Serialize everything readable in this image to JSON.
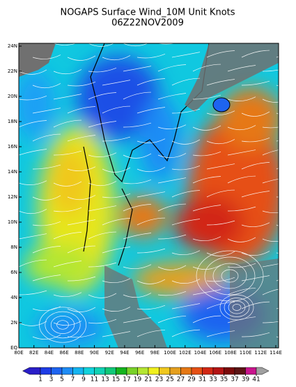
{
  "title": "NOGAPS Surface Wind_10M Unit Knots",
  "subtitle": "06Z22NOV2009",
  "lat_labels": [
    "EQ",
    "2N",
    "4N",
    "6N",
    "8N",
    "10N",
    "12N",
    "14N",
    "16N",
    "18N",
    "20N",
    "22N",
    "24N"
  ],
  "lon_labels": [
    "80E",
    "82E",
    "84E",
    "86E",
    "88E",
    "90E",
    "92E",
    "94E",
    "96E",
    "98E",
    "100E",
    "102E",
    "104E",
    "106E",
    "108E",
    "110E",
    "112E",
    "114E"
  ],
  "colorbar": {
    "levels": [
      1,
      3,
      5,
      7,
      9,
      11,
      13,
      15,
      17,
      19,
      21,
      23,
      25,
      27,
      29,
      31,
      33,
      35,
      37,
      39,
      41
    ],
    "colors": [
      "#2a1ec8",
      "#1e3ce6",
      "#1e64f0",
      "#1e8cf5",
      "#14b4f0",
      "#10d2dc",
      "#10d2b4",
      "#10c878",
      "#14b41e",
      "#78d228",
      "#b4e632",
      "#f0f01e",
      "#f0c81e",
      "#e6a01e",
      "#e67814",
      "#e65014",
      "#d22814",
      "#b41414",
      "#7a0a0a",
      "#5a1414",
      "#c8148c",
      "#a0a0a0"
    ]
  }
}
